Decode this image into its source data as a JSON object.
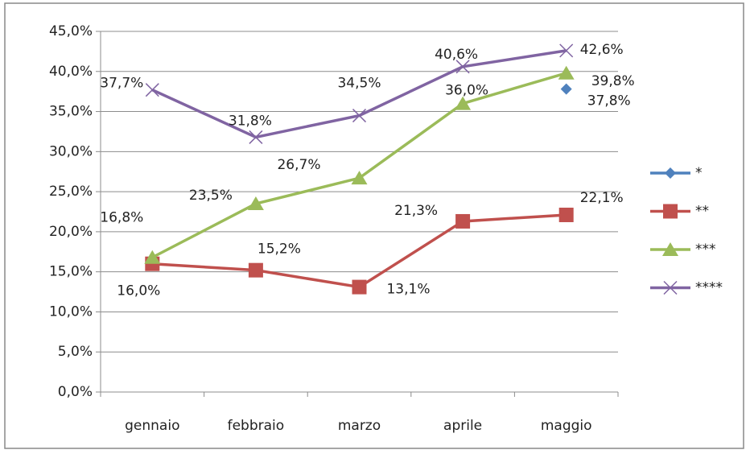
{
  "chart_data": {
    "type": "line",
    "categories": [
      "gennaio",
      "febbraio",
      "marzo",
      "aprile",
      "maggio"
    ],
    "series": [
      {
        "name": "*",
        "color": "#4f81bd",
        "marker": "diamond",
        "values": [
          null,
          null,
          null,
          null,
          37.8
        ],
        "value_labels": [
          null,
          null,
          null,
          null,
          "37,8%"
        ]
      },
      {
        "name": "**",
        "color": "#c0504d",
        "marker": "square",
        "values": [
          16.0,
          15.2,
          13.1,
          21.3,
          22.1
        ],
        "value_labels": [
          "16,0%",
          "15,2%",
          "13,1%",
          "21,3%",
          "22,1%"
        ]
      },
      {
        "name": "***",
        "color": "#9bbb59",
        "marker": "triangle",
        "values": [
          16.8,
          23.5,
          26.7,
          36.0,
          39.8
        ],
        "value_labels": [
          "16,8%",
          "23,5%",
          "26,7%",
          "36,0%",
          "39,8%"
        ]
      },
      {
        "name": "****",
        "color": "#8064a2",
        "marker": "x",
        "values": [
          37.7,
          31.8,
          34.5,
          40.6,
          42.6
        ],
        "value_labels": [
          "37,7%",
          "31,8%",
          "34,5%",
          "40,6%",
          "42,6%"
        ]
      }
    ],
    "ylim": [
      0,
      45
    ],
    "yticks": [
      {
        "value": 0,
        "label": "0,0%"
      },
      {
        "value": 5,
        "label": "5,0%"
      },
      {
        "value": 10,
        "label": "10,0%"
      },
      {
        "value": 15,
        "label": "15,0%"
      },
      {
        "value": 20,
        "label": "20,0%"
      },
      {
        "value": 25,
        "label": "25,0%"
      },
      {
        "value": 30,
        "label": "30,0%"
      },
      {
        "value": 35,
        "label": "35,0%"
      },
      {
        "value": 40,
        "label": "40,0%"
      },
      {
        "value": 45,
        "label": "45,0%"
      }
    ],
    "grid": true,
    "legend": "right"
  }
}
